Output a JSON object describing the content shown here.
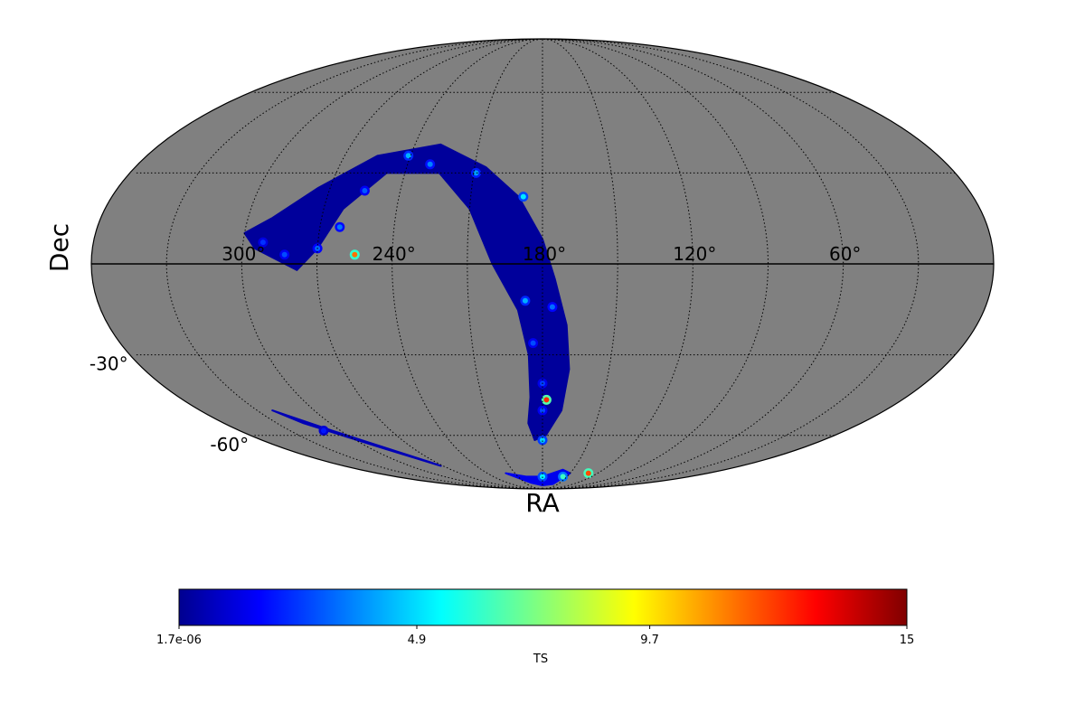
{
  "chart_data": {
    "type": "heatmap",
    "projection": "mollweide",
    "xlabel": "RA",
    "ylabel": "Dec",
    "ra_tick_labels": [
      "300°",
      "240°",
      "180°",
      "120°",
      "60°"
    ],
    "ra_tick_values": [
      300,
      240,
      180,
      120,
      60
    ],
    "dec_tick_labels": [
      "-30°",
      "-60°"
    ],
    "dec_tick_values": [
      -30,
      -60
    ],
    "grid": true,
    "background_color": "#808080",
    "colormap": "jet",
    "colorbar": {
      "label": "TS",
      "min": 1.7e-06,
      "max": 15,
      "tick_labels": [
        "1.7e-06",
        "4.9",
        "9.7",
        "15"
      ],
      "tick_values": [
        1.7e-06,
        4.9,
        9.7,
        15
      ]
    },
    "coverage_regions": [
      {
        "name": "arc",
        "path": [
          [
            290,
            15
          ],
          [
            275,
            25
          ],
          [
            255,
            36
          ],
          [
            228,
            40
          ],
          [
            205,
            32
          ],
          [
            190,
            22
          ],
          [
            180,
            8
          ],
          [
            175,
            -5
          ],
          [
            170,
            -20
          ],
          [
            168,
            -35
          ],
          [
            170,
            -50
          ],
          [
            178,
            -60
          ],
          [
            185,
            -62
          ],
          [
            188,
            -55
          ],
          [
            186,
            -45
          ],
          [
            186,
            -30
          ],
          [
            190,
            -15
          ],
          [
            200,
            0
          ],
          [
            210,
            18
          ],
          [
            225,
            30
          ],
          [
            248,
            30
          ],
          [
            262,
            18
          ],
          [
            270,
            5
          ],
          [
            278,
            -2
          ],
          [
            295,
            5
          ],
          [
            300,
            10
          ],
          [
            290,
            15
          ]
        ],
        "base_ts": 0.4
      },
      {
        "name": "southern-strip",
        "path": [
          [
            322,
            -50
          ],
          [
            305,
            -58
          ],
          [
            275,
            -72
          ],
          [
            272,
            -74
          ],
          [
            290,
            -66
          ],
          [
            315,
            -55
          ],
          [
            322,
            -50
          ]
        ],
        "base_ts": 0.8
      },
      {
        "name": "south-pole-patch",
        "path": [
          [
            220,
            -78
          ],
          [
            200,
            -84
          ],
          [
            180,
            -86
          ],
          [
            160,
            -85
          ],
          [
            150,
            -78
          ],
          [
            160,
            -76
          ],
          [
            180,
            -80
          ],
          [
            200,
            -80
          ],
          [
            220,
            -78
          ]
        ],
        "base_ts": 1.6
      }
    ],
    "hotspots": [
      {
        "ra": 241,
        "dec": 36,
        "ts": 4.5
      },
      {
        "ra": 230,
        "dec": 33,
        "ts": 3.8
      },
      {
        "ra": 209,
        "dec": 30,
        "ts": 4.2
      },
      {
        "ra": 188,
        "dec": 22,
        "ts": 5.3
      },
      {
        "ra": 255,
        "dec": 24,
        "ts": 3.2
      },
      {
        "ra": 262,
        "dec": 12,
        "ts": 3.6
      },
      {
        "ra": 270,
        "dec": 5,
        "ts": 3.4
      },
      {
        "ra": 283,
        "dec": 3,
        "ts": 3.0
      },
      {
        "ra": 292,
        "dec": 7,
        "ts": 2.6
      },
      {
        "ra": 255,
        "dec": 3,
        "ts": 11.5
      },
      {
        "ra": 187,
        "dec": -12,
        "ts": 4.4
      },
      {
        "ra": 176,
        "dec": -14,
        "ts": 3.5
      },
      {
        "ra": 184,
        "dec": -26,
        "ts": 3.0
      },
      {
        "ra": 180,
        "dec": -40,
        "ts": 2.8
      },
      {
        "ra": 178,
        "dec": -46,
        "ts": 12.5
      },
      {
        "ra": 180,
        "dec": -50,
        "ts": 3.0
      },
      {
        "ra": 180,
        "dec": -62,
        "ts": 5.0
      },
      {
        "ra": 180,
        "dec": -80,
        "ts": 5.5
      },
      {
        "ra": 155,
        "dec": -80,
        "ts": 6.5
      },
      {
        "ra": 130,
        "dec": -78,
        "ts": 12.0
      },
      {
        "ra": 310,
        "dec": -58,
        "ts": 2.2
      }
    ]
  }
}
